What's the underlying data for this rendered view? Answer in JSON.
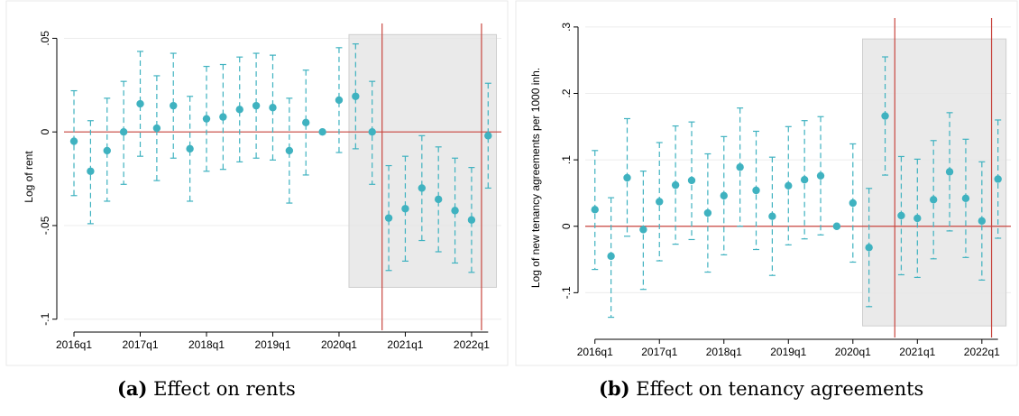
{
  "captions": [
    {
      "tag": "(a)",
      "text": "Effect on rents"
    },
    {
      "tag": "(b)",
      "text": "Effect on tenancy agreements"
    }
  ],
  "colors": {
    "marker": "#3fb2c0",
    "zero_line": "#c8463f",
    "vline": "#c8463f",
    "shade": "#e6e6e6",
    "grid": "#ececec"
  },
  "chart_data": [
    {
      "type": "scatter",
      "subtype": "event-study coefficient plot with 95% confidence intervals",
      "xlabel": "",
      "ylabel": "Log of rent",
      "xticks": [
        "2016q1",
        "2017q1",
        "2018q1",
        "2019q1",
        "2020q1",
        "2021q1",
        "2022q1"
      ],
      "xtick_positions": [
        0,
        4,
        8,
        12,
        16,
        20,
        24
      ],
      "yticks": [
        {
          "v": 0.05,
          "label": ".05"
        },
        {
          "v": 0,
          "label": "0"
        },
        {
          "v": -0.05,
          "label": "-.05"
        },
        {
          "v": -0.1,
          "label": "-.1"
        }
      ],
      "xlim": [
        -0.6,
        25.8
      ],
      "ylim": [
        -0.104,
        0.056
      ],
      "reference_line_y": 0,
      "vertical_lines_x": [
        18.6,
        24.6
      ],
      "shaded_region": {
        "x": [
          16.6,
          25.5
        ],
        "y": [
          -0.083,
          0.052
        ]
      },
      "grid": true,
      "points": [
        {
          "x": 0,
          "y": -0.005,
          "lo": -0.034,
          "hi": 0.022
        },
        {
          "x": 1,
          "y": -0.021,
          "lo": -0.049,
          "hi": 0.006
        },
        {
          "x": 2,
          "y": -0.01,
          "lo": -0.037,
          "hi": 0.018
        },
        {
          "x": 3,
          "y": 0.0,
          "lo": -0.028,
          "hi": 0.027
        },
        {
          "x": 4,
          "y": 0.015,
          "lo": -0.013,
          "hi": 0.043
        },
        {
          "x": 5,
          "y": 0.002,
          "lo": -0.026,
          "hi": 0.03
        },
        {
          "x": 6,
          "y": 0.014,
          "lo": -0.014,
          "hi": 0.042
        },
        {
          "x": 7,
          "y": -0.009,
          "lo": -0.037,
          "hi": 0.019
        },
        {
          "x": 8,
          "y": 0.007,
          "lo": -0.021,
          "hi": 0.035
        },
        {
          "x": 9,
          "y": 0.008,
          "lo": -0.02,
          "hi": 0.036
        },
        {
          "x": 10,
          "y": 0.012,
          "lo": -0.016,
          "hi": 0.04
        },
        {
          "x": 11,
          "y": 0.014,
          "lo": -0.014,
          "hi": 0.042
        },
        {
          "x": 12,
          "y": 0.013,
          "lo": -0.015,
          "hi": 0.041
        },
        {
          "x": 13,
          "y": -0.01,
          "lo": -0.038,
          "hi": 0.018
        },
        {
          "x": 14,
          "y": 0.005,
          "lo": -0.023,
          "hi": 0.033
        },
        {
          "x": 15,
          "y": 0.0,
          "lo": null,
          "hi": null
        },
        {
          "x": 16,
          "y": 0.017,
          "lo": -0.011,
          "hi": 0.045
        },
        {
          "x": 17,
          "y": 0.019,
          "lo": -0.009,
          "hi": 0.047
        },
        {
          "x": 18,
          "y": 0.0,
          "lo": -0.028,
          "hi": 0.027
        },
        {
          "x": 19,
          "y": -0.046,
          "lo": -0.074,
          "hi": -0.018
        },
        {
          "x": 20,
          "y": -0.041,
          "lo": -0.069,
          "hi": -0.013
        },
        {
          "x": 21,
          "y": -0.03,
          "lo": -0.058,
          "hi": -0.002
        },
        {
          "x": 22,
          "y": -0.036,
          "lo": -0.064,
          "hi": -0.008
        },
        {
          "x": 23,
          "y": -0.042,
          "lo": -0.07,
          "hi": -0.014
        },
        {
          "x": 24,
          "y": -0.047,
          "lo": -0.075,
          "hi": -0.019
        },
        {
          "x": 25,
          "y": -0.002,
          "lo": -0.03,
          "hi": 0.026
        }
      ]
    },
    {
      "type": "scatter",
      "subtype": "event-study coefficient plot with 95% confidence intervals",
      "xlabel": "",
      "ylabel": "Log of new tenancy agreements per 1000 inh.",
      "xticks": [
        "2016q1",
        "2017q1",
        "2018q1",
        "2019q1",
        "2020q1",
        "2021q1",
        "2022q1"
      ],
      "xtick_positions": [
        0,
        4,
        8,
        12,
        16,
        20,
        24
      ],
      "yticks": [
        {
          "v": 0.3,
          "label": ".3"
        },
        {
          "v": 0.2,
          "label": ".2"
        },
        {
          "v": 0.1,
          "label": ".1"
        },
        {
          "v": 0,
          "label": "0"
        },
        {
          "v": -0.1,
          "label": "-.1"
        }
      ],
      "xlim": [
        -0.6,
        25.8
      ],
      "ylim": [
        -0.162,
        0.308
      ],
      "reference_line_y": 0,
      "vertical_lines_x": [
        18.6,
        24.6
      ],
      "shaded_region": {
        "x": [
          16.6,
          25.5
        ],
        "y": [
          -0.15,
          0.282
        ]
      },
      "grid": true,
      "points": [
        {
          "x": 0,
          "y": 0.025,
          "lo": -0.065,
          "hi": 0.114
        },
        {
          "x": 1,
          "y": -0.045,
          "lo": -0.137,
          "hi": 0.043
        },
        {
          "x": 2,
          "y": 0.073,
          "lo": -0.015,
          "hi": 0.162
        },
        {
          "x": 3,
          "y": -0.005,
          "lo": -0.095,
          "hi": 0.083
        },
        {
          "x": 4,
          "y": 0.037,
          "lo": -0.052,
          "hi": 0.126
        },
        {
          "x": 5,
          "y": 0.062,
          "lo": -0.027,
          "hi": 0.151
        },
        {
          "x": 6,
          "y": 0.069,
          "lo": -0.02,
          "hi": 0.157
        },
        {
          "x": 7,
          "y": 0.02,
          "lo": -0.069,
          "hi": 0.109
        },
        {
          "x": 8,
          "y": 0.046,
          "lo": -0.043,
          "hi": 0.135
        },
        {
          "x": 9,
          "y": 0.089,
          "lo": 0.0,
          "hi": 0.178
        },
        {
          "x": 10,
          "y": 0.054,
          "lo": -0.035,
          "hi": 0.143
        },
        {
          "x": 11,
          "y": 0.015,
          "lo": -0.074,
          "hi": 0.104
        },
        {
          "x": 12,
          "y": 0.061,
          "lo": -0.028,
          "hi": 0.15
        },
        {
          "x": 13,
          "y": 0.07,
          "lo": -0.019,
          "hi": 0.159
        },
        {
          "x": 14,
          "y": 0.076,
          "lo": -0.013,
          "hi": 0.165
        },
        {
          "x": 15,
          "y": 0.0,
          "lo": null,
          "hi": null
        },
        {
          "x": 16,
          "y": 0.035,
          "lo": -0.054,
          "hi": 0.124
        },
        {
          "x": 17,
          "y": -0.032,
          "lo": -0.121,
          "hi": 0.057
        },
        {
          "x": 18,
          "y": 0.166,
          "lo": 0.077,
          "hi": 0.255
        },
        {
          "x": 19,
          "y": 0.016,
          "lo": -0.073,
          "hi": 0.105
        },
        {
          "x": 20,
          "y": 0.012,
          "lo": -0.077,
          "hi": 0.101
        },
        {
          "x": 21,
          "y": 0.04,
          "lo": -0.049,
          "hi": 0.129
        },
        {
          "x": 22,
          "y": 0.082,
          "lo": -0.007,
          "hi": 0.171
        },
        {
          "x": 23,
          "y": 0.042,
          "lo": -0.047,
          "hi": 0.131
        },
        {
          "x": 24,
          "y": 0.008,
          "lo": -0.081,
          "hi": 0.097
        },
        {
          "x": 25,
          "y": 0.071,
          "lo": -0.018,
          "hi": 0.16
        }
      ]
    }
  ]
}
